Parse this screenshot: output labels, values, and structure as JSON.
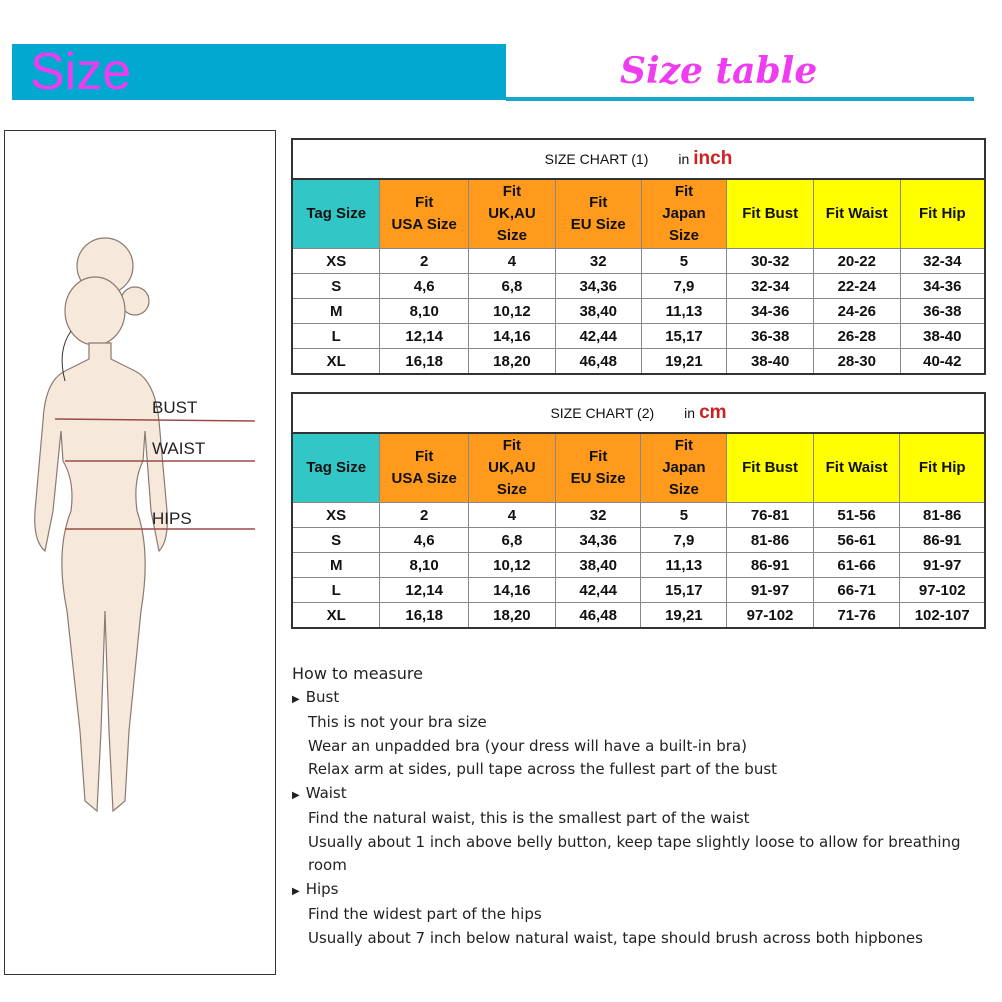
{
  "header": {
    "title": "Size",
    "subtitle": "Size table",
    "banner_color": "#02a8d0",
    "title_color": "#f03cf0"
  },
  "figure": {
    "labels": {
      "bust": "BUST",
      "waist": "WAIST",
      "hips": "HIPS"
    }
  },
  "charts": [
    {
      "title": "SIZE CHART (1)",
      "unit_prefix": "in",
      "unit": "inch",
      "headers": [
        "Tag Size",
        "Fit\nUSA Size",
        "Fit\nUK,AU\nSize",
        "Fit\nEU Size",
        "Fit\nJapan\nSize",
        "Fit Bust",
        "Fit Waist",
        "Fit Hip"
      ],
      "rows": [
        [
          "XS",
          "2",
          "4",
          "32",
          "5",
          "30-32",
          "20-22",
          "32-34"
        ],
        [
          "S",
          "4,6",
          "6,8",
          "34,36",
          "7,9",
          "32-34",
          "22-24",
          "34-36"
        ],
        [
          "M",
          "8,10",
          "10,12",
          "38,40",
          "11,13",
          "34-36",
          "24-26",
          "36-38"
        ],
        [
          "L",
          "12,14",
          "14,16",
          "42,44",
          "15,17",
          "36-38",
          "26-28",
          "38-40"
        ],
        [
          "XL",
          "16,18",
          "18,20",
          "46,48",
          "19,21",
          "38-40",
          "28-30",
          "40-42"
        ]
      ]
    },
    {
      "title": "SIZE CHART (2)",
      "unit_prefix": "in",
      "unit": "cm",
      "headers": [
        "Tag Size",
        "Fit\nUSA Size",
        "Fit\nUK,AU\nSize",
        "Fit\nEU Size",
        "Fit\nJapan\nSize",
        "Fit Bust",
        "Fit Waist",
        "Fit Hip"
      ],
      "rows": [
        [
          "XS",
          "2",
          "4",
          "32",
          "5",
          "76-81",
          "51-56",
          "81-86"
        ],
        [
          "S",
          "4,6",
          "6,8",
          "34,36",
          "7,9",
          "81-86",
          "56-61",
          "86-91"
        ],
        [
          "M",
          "8,10",
          "10,12",
          "38,40",
          "11,13",
          "86-91",
          "61-66",
          "91-97"
        ],
        [
          "L",
          "12,14",
          "14,16",
          "42,44",
          "15,17",
          "91-97",
          "66-71",
          "97-102"
        ],
        [
          "XL",
          "16,18",
          "18,20",
          "46,48",
          "19,21",
          "97-102",
          "71-76",
          "102-107"
        ]
      ]
    }
  ],
  "measure": {
    "title": "How to measure",
    "sections": [
      {
        "label": "Bust",
        "lines": [
          "This is not your bra size",
          "Wear an unpadded bra (your dress will have a built-in bra)",
          "Relax arm at sides, pull tape across the fullest part of the bust"
        ]
      },
      {
        "label": "Waist",
        "lines": [
          "Find the natural waist, this is the smallest part of the waist",
          "Usually about 1 inch above belly button, keep tape slightly loose to allow for breathing room"
        ]
      },
      {
        "label": "Hips",
        "lines": [
          "Find the widest part of the hips",
          "Usually about 7 inch below natural waist, tape should brush across both hipbones"
        ]
      }
    ]
  }
}
